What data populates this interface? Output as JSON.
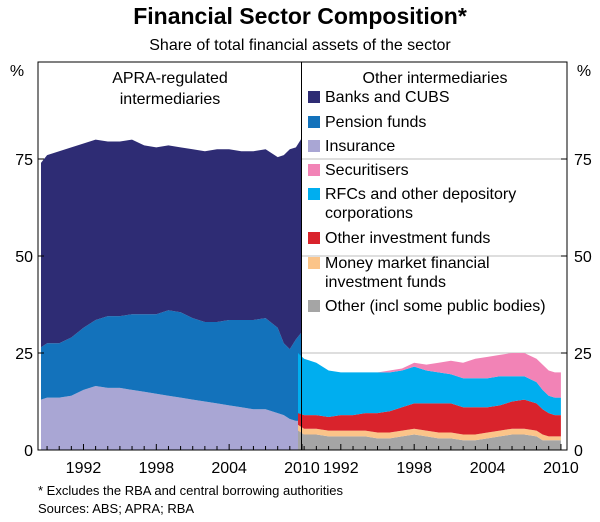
{
  "chart_data": {
    "type": "area",
    "title": "Financial Sector Composition*",
    "subtitle": "Share of total financial assets of the sector",
    "ylabel_left": "%",
    "ylabel_right": "%",
    "ylim": [
      0,
      100
    ],
    "yticks": [
      "0",
      "25",
      "50",
      "75"
    ],
    "xticks": [
      "1992",
      "1998",
      "2004",
      "2010"
    ],
    "x_range": [
      1988.5,
      2010.25
    ],
    "stacked": true,
    "panels": [
      {
        "title": "APRA-regulated intermediaries",
        "x": [
          1988.5,
          1989.0,
          1990.0,
          1991.0,
          1992.0,
          1993.0,
          1994.0,
          1995.0,
          1996.0,
          1997.0,
          1998.0,
          1999.0,
          2000.0,
          2001.0,
          2002.0,
          2003.0,
          2004.0,
          2005.0,
          2006.0,
          2007.0,
          2008.0,
          2008.5,
          2009.0,
          2009.5,
          2010.0
        ],
        "series": [
          {
            "name": "Insurance",
            "color": "#a9a6d4",
            "values": [
              13,
              13.5,
              13.5,
              14,
              15.5,
              16.5,
              16,
              16,
              15.5,
              15,
              14.5,
              14,
              13.5,
              13,
              12.5,
              12,
              11.5,
              11,
              10.5,
              10.5,
              9.5,
              9,
              8,
              7.5,
              7.5
            ]
          },
          {
            "name": "Pension funds",
            "color": "#1372bb",
            "values": [
              13.5,
              14,
              14,
              15,
              16,
              17,
              18.5,
              18.5,
              19.5,
              20,
              20.5,
              22,
              22,
              21,
              20.5,
              21,
              22,
              22.5,
              23,
              23.5,
              22,
              18.5,
              18,
              21,
              23
            ]
          },
          {
            "name": "Banks and CUBS",
            "color": "#2e2c74",
            "values": [
              47.5,
              48.5,
              49.5,
              49,
              47.5,
              46.5,
              45,
              45,
              45,
              43.5,
              43,
              42.5,
              42.5,
              43.5,
              44,
              44.5,
              44,
              43.5,
              43.5,
              43.5,
              44,
              48.5,
              51.5,
              49.5,
              50
            ]
          }
        ]
      },
      {
        "title": "Other intermediaries",
        "x": [
          1988.5,
          1989.0,
          1990.0,
          1991.0,
          1992.0,
          1993.0,
          1994.0,
          1995.0,
          1996.0,
          1997.0,
          1998.0,
          1999.0,
          2000.0,
          2001.0,
          2002.0,
          2003.0,
          2004.0,
          2005.0,
          2006.0,
          2007.0,
          2008.0,
          2008.5,
          2009.0,
          2009.5,
          2010.0
        ],
        "series": [
          {
            "name": "Other (incl some public bodies)",
            "color": "#a5a5a5",
            "values": [
              5,
              4,
              4,
              3.5,
              3.5,
              3.5,
              3.5,
              3,
              3,
              3.5,
              4,
              3.5,
              3,
              3,
              2.5,
              2.5,
              3,
              3.5,
              4,
              4,
              3.5,
              2.5,
              2.5,
              2.5,
              2.5
            ]
          },
          {
            "name": "Money market financial investment funds",
            "color": "#fbc489",
            "values": [
              1.5,
              1.5,
              1.5,
              1.5,
              1.5,
              1.5,
              1.5,
              1.5,
              1.5,
              1.5,
              1.5,
              1.5,
              1.5,
              1.5,
              1.5,
              1.5,
              1.5,
              1.5,
              1.5,
              1.5,
              1.5,
              1.5,
              1,
              1,
              1
            ]
          },
          {
            "name": "Other investment funds",
            "color": "#d9232c",
            "values": [
              3,
              3.5,
              3.5,
              3.5,
              4,
              4,
              4.5,
              5,
              5.5,
              6,
              6.5,
              7,
              7.5,
              7.5,
              7,
              7,
              6.5,
              6.5,
              7,
              7.5,
              7,
              6.5,
              6,
              5.5,
              5.5
            ]
          },
          {
            "name": "RFCs and other depository corporations",
            "color": "#00aeef",
            "values": [
              15.5,
              14.5,
              13.5,
              12,
              11,
              11,
              10.5,
              10.5,
              10,
              9.5,
              9.5,
              8.5,
              8,
              7.5,
              7.5,
              7.5,
              7.5,
              7.5,
              6.5,
              6,
              5.5,
              5,
              4.5,
              4.5,
              4.5
            ]
          },
          {
            "name": "Securitisers",
            "color": "#f283b6",
            "values": [
              0,
              0,
              0,
              0,
              0,
              0,
              0,
              0,
              0.5,
              0.5,
              1,
              1.5,
              2.5,
              3.5,
              4,
              5,
              5.5,
              5.5,
              6,
              6,
              6,
              6.5,
              6.5,
              6.5,
              6.5
            ]
          }
        ]
      }
    ],
    "legend": [
      "Banks and CUBS",
      "Pension funds",
      "Insurance",
      "Securitisers",
      "RFCs and other depository corporations",
      "Other investment funds",
      "Money market financial investment funds",
      "Other (incl some public bodies)"
    ],
    "legend_placement": "right panel, top",
    "grid": true
  },
  "footnotes": {
    "note": "*   Excludes the RBA and central borrowing authorities",
    "sources": "Sources: ABS; APRA; RBA"
  }
}
